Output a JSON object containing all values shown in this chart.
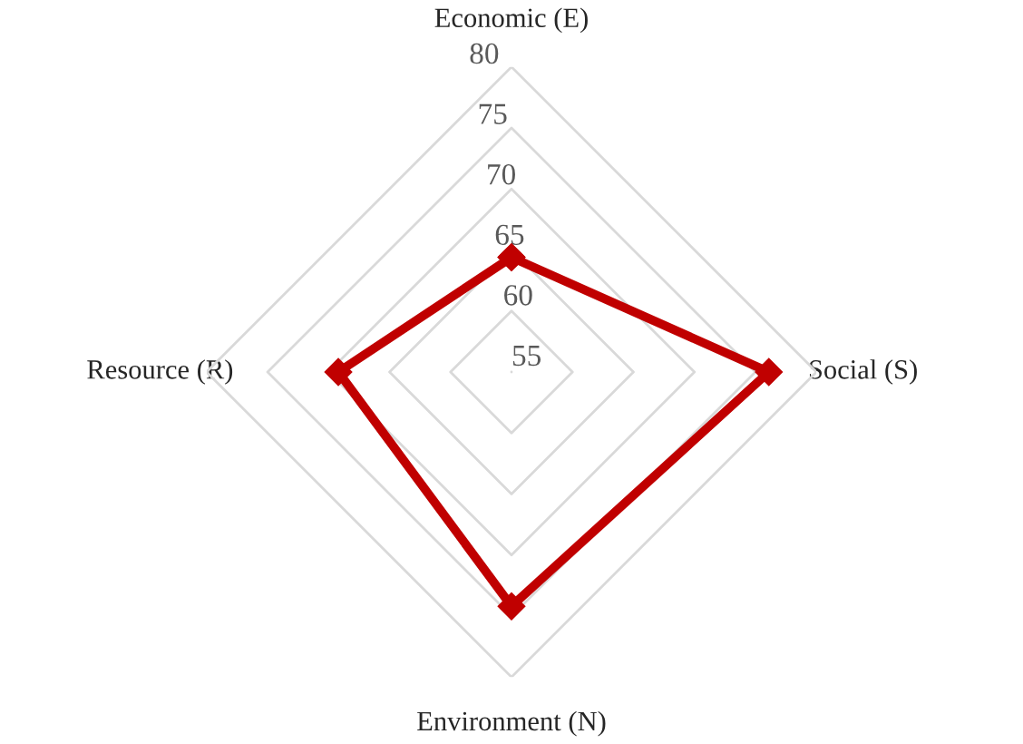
{
  "chart_data": {
    "type": "radar",
    "categories": [
      "Economic (E)",
      "Social (S)",
      "Environment (N)",
      "Resource (R)"
    ],
    "series": [
      {
        "color": "#c00000",
        "values": [
          64.4,
          76.1,
          74.2,
          69.2
        ]
      }
    ],
    "ylim": [
      55,
      80
    ],
    "yticks": [
      55,
      60,
      65,
      70,
      75,
      80
    ],
    "grid": true,
    "marker": "diamond",
    "line_style": "solid"
  }
}
